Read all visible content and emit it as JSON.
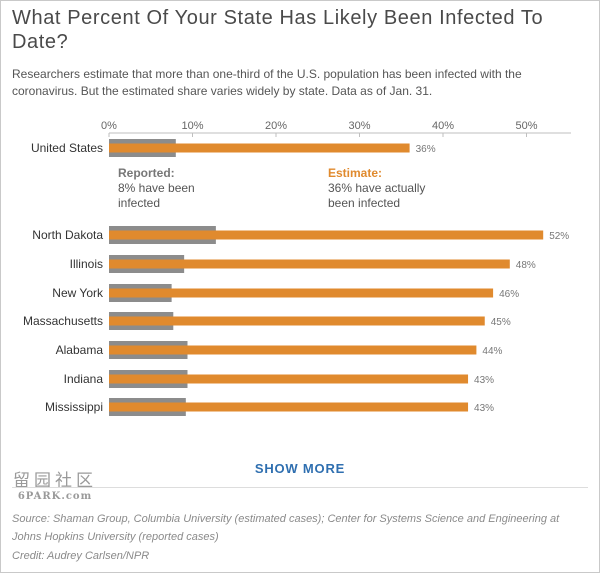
{
  "header": {
    "title": "What Percent Of Your State Has Likely Been Infected To Date?",
    "subtitle": "Researchers estimate that more than one-third of the U.S. population has been infected with the coronavirus. But the estimated share varies widely by state. Data as of Jan. 31."
  },
  "chart_data": {
    "type": "bar",
    "orientation": "horizontal",
    "xlim": [
      0,
      55
    ],
    "ticks": [
      0,
      10,
      20,
      30,
      40,
      50
    ],
    "tick_labels": [
      "0%",
      "10%",
      "20%",
      "30%",
      "40%",
      "50%"
    ],
    "categories": [
      "United States",
      "North Dakota",
      "Illinois",
      "New York",
      "Massachusetts",
      "Alabama",
      "Indiana",
      "Mississippi"
    ],
    "series": [
      {
        "name": "Reported",
        "color": "#8c8c8c",
        "values": [
          8,
          12.8,
          9,
          7.5,
          7.7,
          9.4,
          9.4,
          9.2
        ]
      },
      {
        "name": "Estimate",
        "color": "#e08a2e",
        "values": [
          36,
          52,
          48,
          46,
          45,
          44,
          43,
          43
        ]
      }
    ],
    "value_labels": [
      "36%",
      "52%",
      "48%",
      "46%",
      "45%",
      "44%",
      "43%",
      "43%"
    ],
    "annotations": {
      "reported": {
        "heading": "Reported:",
        "lines": [
          "8% have been",
          "infected"
        ]
      },
      "estimate": {
        "heading": "Estimate:",
        "lines": [
          "36% have actually",
          "been infected"
        ]
      }
    },
    "grid": false,
    "legend": "inline-annotation"
  },
  "controls": {
    "show_more": "SHOW MORE"
  },
  "watermark": {
    "logo": "留园社区",
    "text": "6PARK.com"
  },
  "footer": {
    "source_1": "Source: Shaman Group, Columbia University (estimated cases); Center for Systems Science and Engineering at",
    "source_2": "Johns Hopkins University (reported cases)",
    "credit": "Credit: Audrey Carlsen/NPR"
  }
}
